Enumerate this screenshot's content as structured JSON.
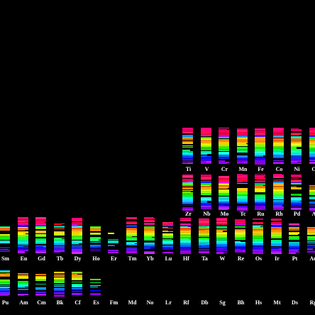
{
  "colors": {
    "background": "#000000",
    "label": "#ffffff"
  },
  "rows": [
    {
      "name": "period-4",
      "elements": [
        "Ti",
        "V",
        "Cr",
        "Mn",
        "Fe",
        "Co",
        "Ni",
        "Cu"
      ],
      "intensity": [
        0.9,
        0.95,
        1.0,
        1.0,
        1.0,
        1.0,
        1.0,
        0.95
      ]
    },
    {
      "name": "period-5",
      "elements": [
        "Zr",
        "Nb",
        "Mo",
        "Tc",
        "Ru",
        "Rh",
        "Pd",
        "Ag"
      ],
      "intensity": [
        1.0,
        1.0,
        1.0,
        1.0,
        1.0,
        0.95,
        0.85,
        0.45
      ]
    },
    {
      "name": "lanthanides-period-6",
      "elements": [
        "Sm",
        "Eu",
        "Gd",
        "Tb",
        "Dy",
        "Ho",
        "Er",
        "Tm",
        "Yb",
        "Lu",
        "Hf",
        "Ta",
        "W",
        "Re",
        "Os",
        "Ir",
        "Pt",
        "Au"
      ],
      "intensity": [
        0.55,
        0.95,
        0.95,
        0.7,
        0.9,
        0.55,
        0.25,
        0.85,
        0.8,
        0.75,
        1.0,
        1.0,
        0.95,
        1.0,
        0.95,
        0.85,
        0.7,
        0.5
      ]
    },
    {
      "name": "actinides-period-7",
      "elements": [
        "Pu",
        "Am",
        "Cm",
        "Bk",
        "Cf",
        "Es",
        "Fm",
        "Md",
        "No",
        "Lr",
        "Rf",
        "Db",
        "Sg",
        "Bh",
        "Hs",
        "Mt",
        "Ds",
        "Rg"
      ],
      "intensity": [
        0.6,
        0.45,
        0.4,
        0.55,
        0.55,
        0.15,
        0,
        0,
        0,
        0,
        0,
        0,
        0,
        0,
        0,
        0,
        0,
        0
      ]
    }
  ]
}
